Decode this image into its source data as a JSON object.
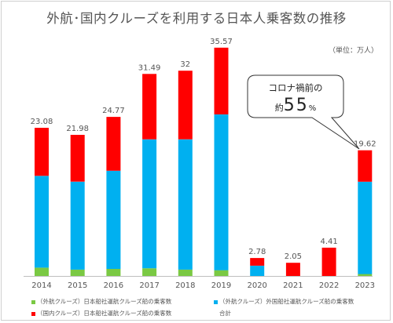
{
  "chart_data": {
    "type": "bar",
    "stacked": true,
    "title": "外航･国内クルーズを利用する日本人乗客数の推移",
    "unit_label": "（単位：万人）",
    "categories": [
      "2014",
      "2015",
      "2016",
      "2017",
      "2018",
      "2019",
      "2020",
      "2021",
      "2022",
      "2023"
    ],
    "series": [
      {
        "name": "（外航クルーズ）日本船社運航クルーズ船の乗客数",
        "color": "#7ac943",
        "values": [
          1.3,
          1.0,
          1.1,
          1.2,
          1.0,
          0.9,
          0.0,
          0.0,
          0.0,
          0.3
        ]
      },
      {
        "name": "（外航クルーズ）外国船社運航クルーズ船の乗客数",
        "color": "#00b0f0",
        "values": [
          14.3,
          13.7,
          15.3,
          20.1,
          20.3,
          24.3,
          1.6,
          0.0,
          0.0,
          14.4
        ]
      },
      {
        "name": "（国内クルーズ）日本船社運航クルーズ船の乗客数",
        "color": "#ff0000",
        "values": [
          7.5,
          7.3,
          8.4,
          10.2,
          10.7,
          10.4,
          1.2,
          2.05,
          4.41,
          4.9
        ]
      }
    ],
    "totals": [
      "23.08",
      "21.98",
      "24.77",
      "31.49",
      "32",
      "35.57",
      "2.78",
      "2.05",
      "4.41",
      "19.62"
    ],
    "totals_legend": "合計",
    "ylim": [
      0,
      40
    ],
    "grid": false,
    "legend_position": "bottom",
    "annotation": {
      "line1": "コロナ禍前の",
      "prefix": "約",
      "value": "55",
      "suffix": "%",
      "target_category": "2023"
    }
  }
}
